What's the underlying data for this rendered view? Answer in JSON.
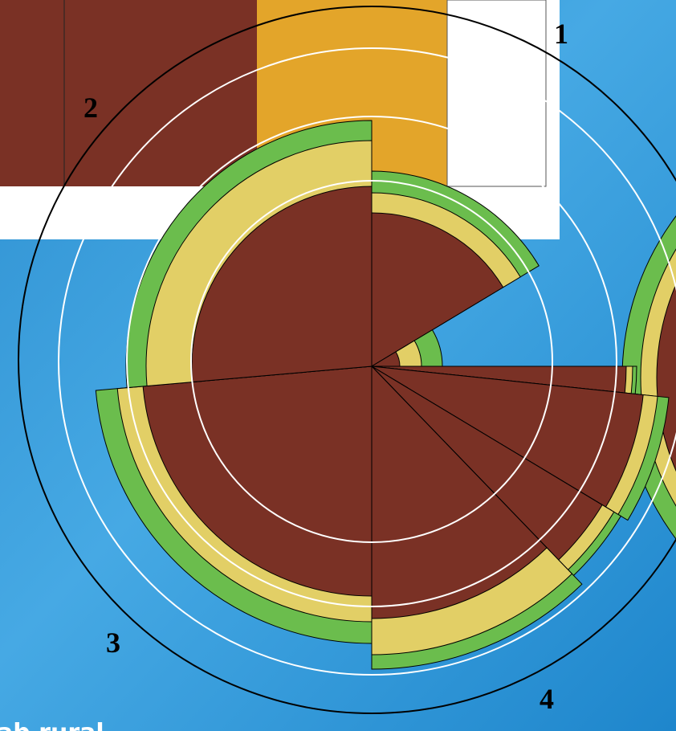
{
  "labels": {
    "quadrant_1": "1",
    "quadrant_2": "2",
    "quadrant_3": "3",
    "quadrant_4": "4"
  },
  "footer": {
    "caption": "ab rural"
  }
}
